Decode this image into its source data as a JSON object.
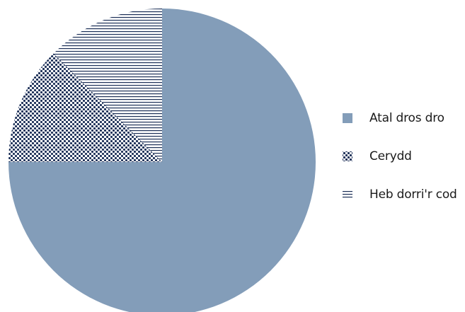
{
  "chart_data": {
    "type": "pie",
    "title": "",
    "start_angle_deg": 0,
    "direction": "clockwise",
    "slices": [
      {
        "label": "Atal dros dro",
        "value": 75,
        "color": "#839db9",
        "pattern": "solid"
      },
      {
        "label": "Cerydd",
        "value": 12.5,
        "color": "#1c2f57",
        "pattern": "dots"
      },
      {
        "label": "Heb dorri'r cod",
        "value": 12.5,
        "color": "#1c2f57",
        "pattern": "horizontal-lines"
      }
    ],
    "legend_position": "right"
  }
}
